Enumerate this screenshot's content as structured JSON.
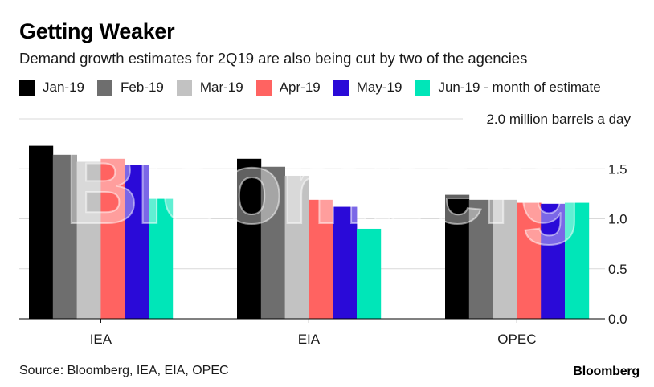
{
  "chart_data": {
    "type": "bar",
    "title": "Getting Weaker",
    "subtitle": "Demand growth estimates for 2Q19 are also being cut by two of the agencies",
    "categories": [
      "IEA",
      "EIA",
      "OPEC"
    ],
    "series": [
      {
        "name": "Jan-19",
        "color": "#000000",
        "values": [
          1.73,
          1.6,
          1.24
        ]
      },
      {
        "name": "Feb-19",
        "color": "#6e6e6e",
        "values": [
          1.64,
          1.52,
          1.19
        ]
      },
      {
        "name": "Mar-19",
        "color": "#c2c2c2",
        "values": [
          1.57,
          1.43,
          1.19
        ]
      },
      {
        "name": "Apr-19",
        "color": "#ff6361",
        "values": [
          1.6,
          1.19,
          1.16
        ]
      },
      {
        "name": "May-19",
        "color": "#2a0ad8",
        "values": [
          1.54,
          1.12,
          1.15
        ]
      },
      {
        "name": "Jun-19 - month of estimate",
        "color": "#00e6b8",
        "values": [
          1.2,
          0.9,
          1.16
        ]
      }
    ],
    "ylim": [
      0,
      2.0
    ],
    "yticks": [
      0.0,
      0.5,
      1.0,
      1.5
    ],
    "ytick_labels": [
      "0.0",
      "0.5",
      "1.0",
      "1.5"
    ],
    "ytop_label": "2.0 million barrels a day",
    "grid": true,
    "legend_position": "top-left",
    "watermark": "Bloomberg"
  },
  "footer": {
    "source": "Source: Bloomberg, IEA, EIA, OPEC",
    "brand": "Bloomberg"
  }
}
